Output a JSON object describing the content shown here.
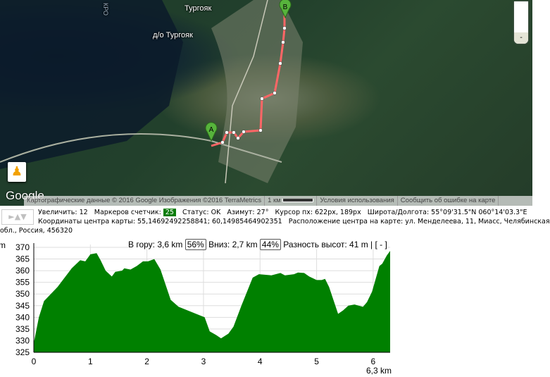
{
  "map": {
    "labels": {
      "town": "Тургояк",
      "resort": "д/о Тургояк",
      "road": "КРО"
    },
    "markers": {
      "start": "A",
      "end": "B"
    },
    "logo": "Google",
    "zoom_minus": "-",
    "attribution": {
      "data": "Картографические данные © 2016 Google Изображения ©2016 TerraMetrics",
      "scale": "1 км",
      "terms": "Условия использования",
      "report": "Сообщить об ошибке на карте"
    },
    "route_color": "#ff6666"
  },
  "info": {
    "arrows": "►▲▼",
    "zoom": "Увеличить: 12",
    "markers_label": "Маркеров счетчик:",
    "markers_count": "25",
    "status": "Статус: OK",
    "azimuth": "Азимут: 27°",
    "cursor": "Курсор пх: 622px, 189px",
    "latlng": "Широта/Долгота: 55°09'31.5\"N 060°14'03.3\"E",
    "center_coords": "Координаты центра карты: 55,14692492258841; 60,14985464902351",
    "center_address": "Расположение центра на карте: ул. Менделеева, 11, Миасс, Челябинская",
    "center_address_cont": "обл., Россия, 456320"
  },
  "stats": {
    "up_label": "В гору: 3,6 km",
    "up_pct": "56%",
    "down_label": "Вниз: 2,7 km",
    "down_pct": "44%",
    "diff": "Разность высот: 41 m |",
    "toggle": "[ - ]"
  },
  "chart_data": {
    "type": "area",
    "ylabel": "m",
    "xlabel": "6,3 km",
    "xlim": [
      0,
      6.3
    ],
    "ylim": [
      325,
      370
    ],
    "xticks": [
      "0",
      "1",
      "2",
      "3",
      "4",
      "5",
      "6"
    ],
    "yticks": [
      "325",
      "330",
      "335",
      "340",
      "345",
      "350",
      "355",
      "360",
      "365",
      "370"
    ],
    "grid": true,
    "color": "#008000",
    "x": [
      0,
      0.09,
      0.18,
      0.42,
      0.67,
      0.82,
      0.91,
      1.0,
      1.11,
      1.18,
      1.27,
      1.38,
      1.44,
      1.56,
      1.6,
      1.71,
      1.82,
      1.93,
      2.02,
      2.13,
      2.24,
      2.42,
      2.56,
      3.02,
      3.11,
      3.22,
      3.31,
      3.44,
      3.53,
      3.67,
      3.87,
      3.98,
      4.2,
      4.36,
      4.44,
      4.6,
      4.67,
      4.78,
      4.87,
      5.0,
      5.09,
      5.15,
      5.22,
      5.38,
      5.47,
      5.56,
      5.67,
      5.82,
      5.89,
      5.98,
      6.11,
      6.16,
      6.24,
      6.3
    ],
    "y": [
      329,
      340,
      347,
      353,
      361,
      364.5,
      364,
      367,
      367.5,
      364.5,
      360,
      357.5,
      359.5,
      360,
      361,
      360.5,
      362,
      364,
      364,
      365,
      360.5,
      347.5,
      344.5,
      340,
      334,
      332.5,
      331,
      333,
      336,
      345,
      357,
      358.5,
      358,
      359,
      358,
      358.5,
      359.2,
      359,
      357.5,
      356,
      356,
      356.5,
      353,
      341.5,
      343,
      345,
      345.5,
      344.5,
      346.5,
      351,
      362,
      363,
      366.5,
      368.5
    ]
  }
}
